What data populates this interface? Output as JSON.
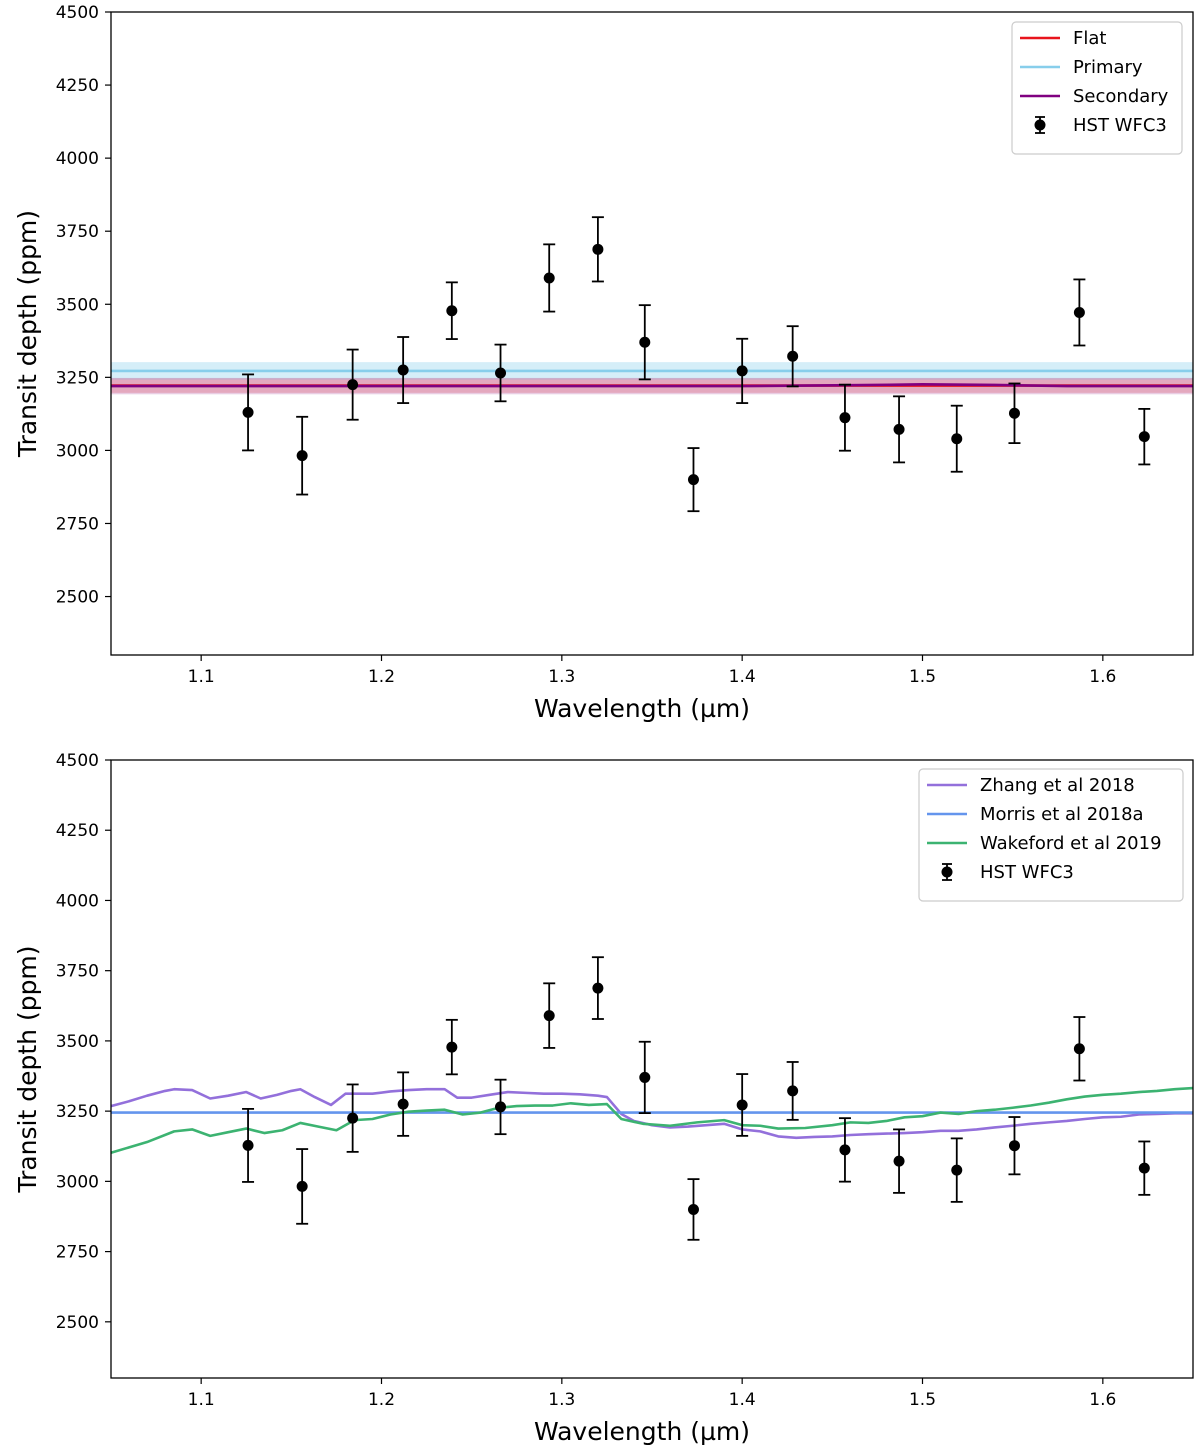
{
  "chart_data": [
    {
      "type": "scatter",
      "xlabel": "Wavelength (µm)",
      "ylabel": "Transit depth (ppm)",
      "xlim": [
        1.05,
        1.65
      ],
      "ylim": [
        2300,
        4500
      ],
      "xticks": [
        1.1,
        1.2,
        1.3,
        1.4,
        1.5,
        1.6
      ],
      "xtick_labels": [
        "1.1",
        "1.2",
        "1.3",
        "1.4",
        "1.5",
        "1.6"
      ],
      "yticks": [
        2500,
        2750,
        3000,
        3250,
        3500,
        3750,
        4000,
        4250,
        4500
      ],
      "ytick_labels": [
        "2500",
        "2750",
        "3000",
        "3250",
        "3500",
        "3750",
        "4000",
        "4250",
        "4500"
      ],
      "legend_position": "top-right",
      "series": [
        {
          "name": "Flat",
          "kind": "line",
          "color": "#e8141c",
          "band": {
            "color": "#f08080",
            "opacity": 0.45,
            "halfwidth": 25
          },
          "x": [
            1.05,
            1.65
          ],
          "y": [
            3222,
            3222
          ]
        },
        {
          "name": "Primary",
          "kind": "line",
          "color": "#87ceeb",
          "band": {
            "color": "#87ceeb",
            "opacity": 0.35,
            "halfwidth": 30
          },
          "x": [
            1.05,
            1.65
          ],
          "y": [
            3272,
            3272
          ]
        },
        {
          "name": "Secondary",
          "kind": "line",
          "color": "#800080",
          "band": {
            "color": "#c06fb0",
            "opacity": 0.35,
            "halfwidth": 28
          },
          "x": [
            1.05,
            1.3,
            1.4,
            1.46,
            1.5,
            1.54,
            1.58,
            1.65
          ],
          "y": [
            3220,
            3220,
            3220,
            3223,
            3226,
            3224,
            3220,
            3220
          ]
        },
        {
          "name": "HST WFC3",
          "kind": "errorbar",
          "color": "#000000",
          "x": [
            1.126,
            1.156,
            1.184,
            1.212,
            1.239,
            1.266,
            1.293,
            1.32,
            1.346,
            1.373,
            1.4,
            1.428,
            1.457,
            1.487,
            1.519,
            1.551,
            1.587,
            1.623
          ],
          "y": [
            3130,
            2982,
            3225,
            3275,
            3478,
            3265,
            3590,
            3688,
            3370,
            2900,
            3272,
            3322,
            3112,
            3072,
            3040,
            3127,
            3472,
            3047
          ],
          "yerr": [
            130,
            133,
            120,
            113,
            97,
            97,
            115,
            110,
            127,
            108,
            110,
            103,
            113,
            113,
            113,
            102,
            113,
            95
          ]
        }
      ]
    },
    {
      "type": "scatter",
      "xlabel": "Wavelength (µm)",
      "ylabel": "Transit depth (ppm)",
      "xlim": [
        1.05,
        1.65
      ],
      "ylim": [
        2300,
        4500
      ],
      "xticks": [
        1.1,
        1.2,
        1.3,
        1.4,
        1.5,
        1.6
      ],
      "xtick_labels": [
        "1.1",
        "1.2",
        "1.3",
        "1.4",
        "1.5",
        "1.6"
      ],
      "yticks": [
        2500,
        2750,
        3000,
        3250,
        3500,
        3750,
        4000,
        4250,
        4500
      ],
      "ytick_labels": [
        "2500",
        "2750",
        "3000",
        "3250",
        "3500",
        "3750",
        "4000",
        "4250",
        "4500"
      ],
      "legend_position": "top-right",
      "series": [
        {
          "name": "Zhang et al 2018",
          "kind": "line",
          "color": "#9370db",
          "x": [
            1.05,
            1.06,
            1.07,
            1.08,
            1.085,
            1.095,
            1.105,
            1.115,
            1.125,
            1.133,
            1.142,
            1.15,
            1.155,
            1.163,
            1.172,
            1.18,
            1.185,
            1.195,
            1.205,
            1.215,
            1.225,
            1.235,
            1.242,
            1.25,
            1.26,
            1.27,
            1.28,
            1.29,
            1.3,
            1.31,
            1.32,
            1.325,
            1.333,
            1.34,
            1.35,
            1.36,
            1.37,
            1.38,
            1.39,
            1.4,
            1.41,
            1.42,
            1.43,
            1.44,
            1.45,
            1.46,
            1.47,
            1.48,
            1.49,
            1.5,
            1.51,
            1.52,
            1.53,
            1.54,
            1.55,
            1.56,
            1.57,
            1.58,
            1.59,
            1.6,
            1.61,
            1.62,
            1.63,
            1.64,
            1.65
          ],
          "y": [
            3268,
            3285,
            3305,
            3322,
            3328,
            3325,
            3295,
            3305,
            3318,
            3295,
            3308,
            3322,
            3328,
            3300,
            3272,
            3312,
            3312,
            3312,
            3320,
            3325,
            3328,
            3328,
            3298,
            3298,
            3308,
            3318,
            3315,
            3312,
            3312,
            3310,
            3305,
            3300,
            3240,
            3215,
            3200,
            3192,
            3195,
            3200,
            3205,
            3185,
            3178,
            3160,
            3155,
            3158,
            3160,
            3165,
            3168,
            3170,
            3172,
            3175,
            3180,
            3180,
            3185,
            3192,
            3198,
            3205,
            3210,
            3215,
            3222,
            3228,
            3230,
            3238,
            3240,
            3242,
            3242
          ]
        },
        {
          "name": "Morris et al 2018a",
          "kind": "line",
          "color": "#6495ed",
          "x": [
            1.05,
            1.65
          ],
          "y": [
            3245,
            3245
          ]
        },
        {
          "name": "Wakeford et al 2019",
          "kind": "line",
          "color": "#3cb371",
          "x": [
            1.05,
            1.07,
            1.085,
            1.095,
            1.105,
            1.115,
            1.125,
            1.135,
            1.145,
            1.155,
            1.165,
            1.175,
            1.185,
            1.195,
            1.205,
            1.215,
            1.225,
            1.235,
            1.245,
            1.255,
            1.265,
            1.275,
            1.285,
            1.295,
            1.305,
            1.315,
            1.325,
            1.333,
            1.345,
            1.36,
            1.375,
            1.39,
            1.4,
            1.41,
            1.42,
            1.435,
            1.45,
            1.46,
            1.47,
            1.48,
            1.49,
            1.5,
            1.51,
            1.52,
            1.53,
            1.54,
            1.55,
            1.56,
            1.57,
            1.58,
            1.59,
            1.6,
            1.61,
            1.62,
            1.63,
            1.64,
            1.65
          ],
          "y": [
            3102,
            3140,
            3178,
            3185,
            3162,
            3175,
            3188,
            3172,
            3182,
            3208,
            3195,
            3182,
            3218,
            3222,
            3238,
            3248,
            3252,
            3255,
            3238,
            3245,
            3262,
            3268,
            3270,
            3270,
            3278,
            3272,
            3275,
            3222,
            3205,
            3198,
            3210,
            3218,
            3200,
            3198,
            3188,
            3190,
            3200,
            3210,
            3208,
            3215,
            3228,
            3232,
            3245,
            3240,
            3250,
            3255,
            3262,
            3270,
            3280,
            3292,
            3302,
            3308,
            3312,
            3318,
            3322,
            3328,
            3332
          ]
        },
        {
          "name": "HST WFC3",
          "kind": "errorbar",
          "color": "#000000",
          "x": [
            1.126,
            1.156,
            1.184,
            1.212,
            1.239,
            1.266,
            1.293,
            1.32,
            1.346,
            1.373,
            1.4,
            1.428,
            1.457,
            1.487,
            1.519,
            1.551,
            1.587,
            1.623
          ],
          "y": [
            3128,
            2982,
            3225,
            3275,
            3478,
            3265,
            3590,
            3688,
            3370,
            2900,
            3272,
            3322,
            3112,
            3072,
            3040,
            3127,
            3472,
            3047
          ],
          "yerr": [
            130,
            133,
            120,
            113,
            97,
            97,
            115,
            110,
            127,
            108,
            110,
            103,
            113,
            113,
            113,
            102,
            113,
            95
          ]
        }
      ]
    }
  ]
}
